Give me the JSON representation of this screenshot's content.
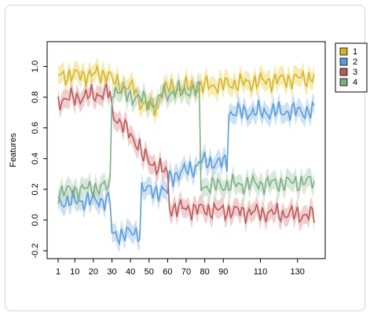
{
  "chart_data": {
    "type": "line",
    "title": "",
    "xlabel": "",
    "ylabel": "Features",
    "xlim": [
      1,
      139
    ],
    "ylim": [
      -0.2,
      1.1
    ],
    "x_ticks": [
      1,
      10,
      20,
      30,
      40,
      50,
      60,
      70,
      80,
      90,
      110,
      130
    ],
    "y_ticks": [
      -0.2,
      0.0,
      0.2,
      0.4,
      0.6,
      0.8,
      1.0
    ],
    "y_tick_labels": [
      "-0.2",
      "0.0",
      "0.2",
      "0.4",
      "0.6",
      "0.8",
      "1.0"
    ],
    "grid": false,
    "legend_position": "top-right outside",
    "band_halfwidth": 0.06,
    "segment_step": 1,
    "series": [
      {
        "name": "1",
        "color": "#d4b52a",
        "band_color": "#efe08a",
        "segments": [
          {
            "x_start": 1,
            "x_end": 29,
            "start": 0.94,
            "end": 0.95
          },
          {
            "x_start": 30,
            "x_end": 43,
            "start": 0.9,
            "end": 0.85
          },
          {
            "x_start": 44,
            "x_end": 55,
            "start": 0.78,
            "end": 0.72
          },
          {
            "x_start": 56,
            "x_end": 139,
            "start": 0.85,
            "end": 0.93
          }
        ]
      },
      {
        "name": "2",
        "color": "#5b9bd5",
        "band_color": "#b3d1ee",
        "segments": [
          {
            "x_start": 1,
            "x_end": 29,
            "start": 0.12,
            "end": 0.13
          },
          {
            "x_start": 30,
            "x_end": 45,
            "start": -0.1,
            "end": -0.08
          },
          {
            "x_start": 46,
            "x_end": 60,
            "start": 0.2,
            "end": 0.18
          },
          {
            "x_start": 61,
            "x_end": 76,
            "start": 0.28,
            "end": 0.35
          },
          {
            "x_start": 77,
            "x_end": 92,
            "start": 0.38,
            "end": 0.37
          },
          {
            "x_start": 93,
            "x_end": 139,
            "start": 0.7,
            "end": 0.71
          }
        ]
      },
      {
        "name": "3",
        "color": "#b85a5a",
        "band_color": "#e8b4b4",
        "segments": [
          {
            "x_start": 1,
            "x_end": 29,
            "start": 0.78,
            "end": 0.83
          },
          {
            "x_start": 30,
            "x_end": 45,
            "start": 0.7,
            "end": 0.48
          },
          {
            "x_start": 46,
            "x_end": 60,
            "start": 0.42,
            "end": 0.3
          },
          {
            "x_start": 61,
            "x_end": 139,
            "start": 0.08,
            "end": 0.03
          }
        ]
      },
      {
        "name": "4",
        "color": "#7fae86",
        "band_color": "#c3dbc6",
        "segments": [
          {
            "x_start": 1,
            "x_end": 29,
            "start": 0.18,
            "end": 0.22
          },
          {
            "x_start": 30,
            "x_end": 55,
            "start": 0.85,
            "end": 0.75
          },
          {
            "x_start": 56,
            "x_end": 77,
            "start": 0.82,
            "end": 0.85
          },
          {
            "x_start": 78,
            "x_end": 139,
            "start": 0.22,
            "end": 0.25
          }
        ]
      }
    ]
  }
}
